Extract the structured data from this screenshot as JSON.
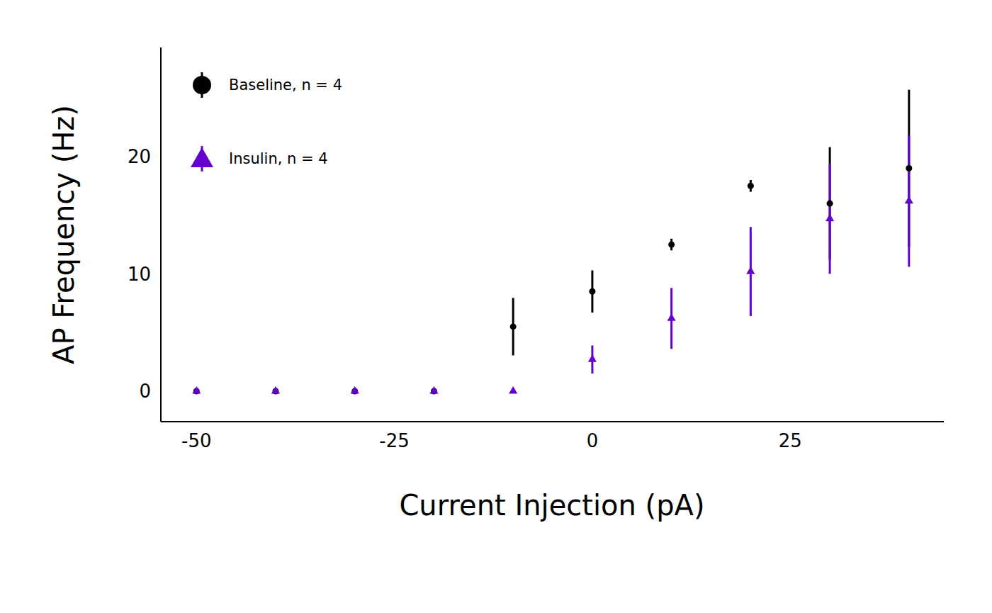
{
  "chart_data": {
    "type": "scatter",
    "x_label": "Current Injection (pA)",
    "y_label": "AP Frequency (Hz)",
    "xlim": [
      -54.5,
      44.4
    ],
    "xticks": [
      -50,
      -25,
      0,
      25
    ],
    "ylim": [
      -2.6,
      29.3
    ],
    "yticks": [
      0,
      10,
      20
    ],
    "grid": false,
    "legend": "upper left",
    "series": [
      {
        "name": "Baseline, n = 4",
        "color": "#000000",
        "marker": "circle",
        "x": [
          -50,
          -40,
          -30,
          -20,
          -10,
          0,
          10,
          20,
          30,
          40
        ],
        "values": [
          0,
          0,
          0,
          0,
          5.5,
          8.5,
          12.5,
          17.5,
          16.0,
          19.0
        ],
        "errors": [
          0,
          0,
          0,
          0,
          2.45,
          1.8,
          0.5,
          0.5,
          4.8,
          6.7
        ]
      },
      {
        "name": "Insulin, n = 4",
        "color": "#6600cc",
        "marker": "triangle",
        "x": [
          -50,
          -40,
          -30,
          -20,
          -10,
          0,
          10,
          20,
          30,
          40
        ],
        "values": [
          0,
          0,
          0,
          0,
          0,
          2.7,
          6.2,
          10.2,
          14.7,
          16.2
        ],
        "errors": [
          0,
          0,
          0,
          0,
          0,
          1.2,
          2.6,
          3.8,
          4.7,
          5.6
        ]
      }
    ]
  }
}
